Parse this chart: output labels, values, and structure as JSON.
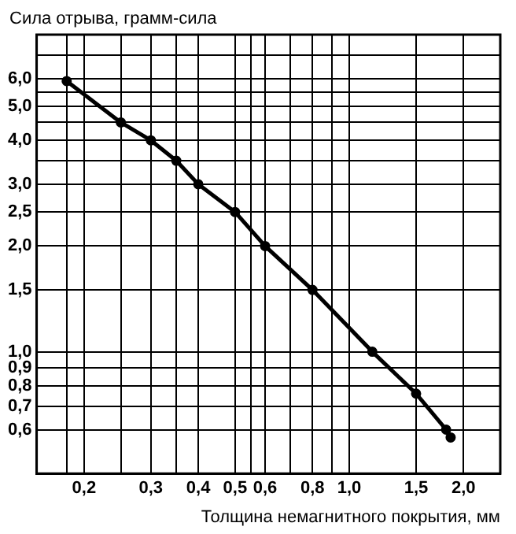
{
  "chart_data": {
    "type": "line",
    "ylabel": "Сила отрыва, грамм-сила",
    "xlabel": "Толщина немагнитного покрытия, мм",
    "log": "xy",
    "grid": true,
    "marker": "circle",
    "line_style": "solid",
    "legend": false,
    "xlim": [
      0.15,
      2.5
    ],
    "ylim": [
      0.45,
      8
    ],
    "xticks": [
      {
        "value": 0.18,
        "label": null
      },
      {
        "value": 0.2,
        "label": "0,2"
      },
      {
        "value": 0.25,
        "label": null
      },
      {
        "value": 0.3,
        "label": "0,3"
      },
      {
        "value": 0.35,
        "label": null
      },
      {
        "value": 0.4,
        "label": "0,4"
      },
      {
        "value": 0.5,
        "label": "0,5"
      },
      {
        "value": 0.55,
        "label": null
      },
      {
        "value": 0.6,
        "label": "0,6"
      },
      {
        "value": 0.7,
        "label": null
      },
      {
        "value": 0.8,
        "label": "0,8"
      },
      {
        "value": 0.9,
        "label": null
      },
      {
        "value": 1,
        "label": "1,0"
      },
      {
        "value": 1.5,
        "label": "1,5"
      },
      {
        "value": 2,
        "label": "2,0"
      }
    ],
    "yticks": [
      {
        "value": 0.6,
        "label": "0,6"
      },
      {
        "value": 0.7,
        "label": "0,7"
      },
      {
        "value": 0.8,
        "label": "0,8"
      },
      {
        "value": 0.9,
        "label": "0,9"
      },
      {
        "value": 1,
        "label": "1,0"
      },
      {
        "value": 1.5,
        "label": "1,5"
      },
      {
        "value": 2,
        "label": "2,0"
      },
      {
        "value": 2.5,
        "label": "2,5"
      },
      {
        "value": 3,
        "label": "3,0"
      },
      {
        "value": 3.5,
        "label": null
      },
      {
        "value": 4,
        "label": "4,0"
      },
      {
        "value": 4.5,
        "label": null
      },
      {
        "value": 5,
        "label": "5,0"
      },
      {
        "value": 5.5,
        "label": null
      },
      {
        "value": 6,
        "label": "6,0"
      },
      {
        "value": 7,
        "label": null
      }
    ],
    "series": [
      {
        "color": "#000000",
        "x": [
          0.18,
          0.25,
          0.3,
          0.35,
          0.4,
          0.5,
          0.6,
          0.8,
          1.15,
          1.5,
          1.8,
          1.85
        ],
        "values": [
          5.9,
          4.5,
          4.0,
          3.5,
          3.0,
          2.5,
          2.0,
          1.5,
          1.0,
          0.76,
          0.6,
          0.57
        ]
      }
    ]
  }
}
